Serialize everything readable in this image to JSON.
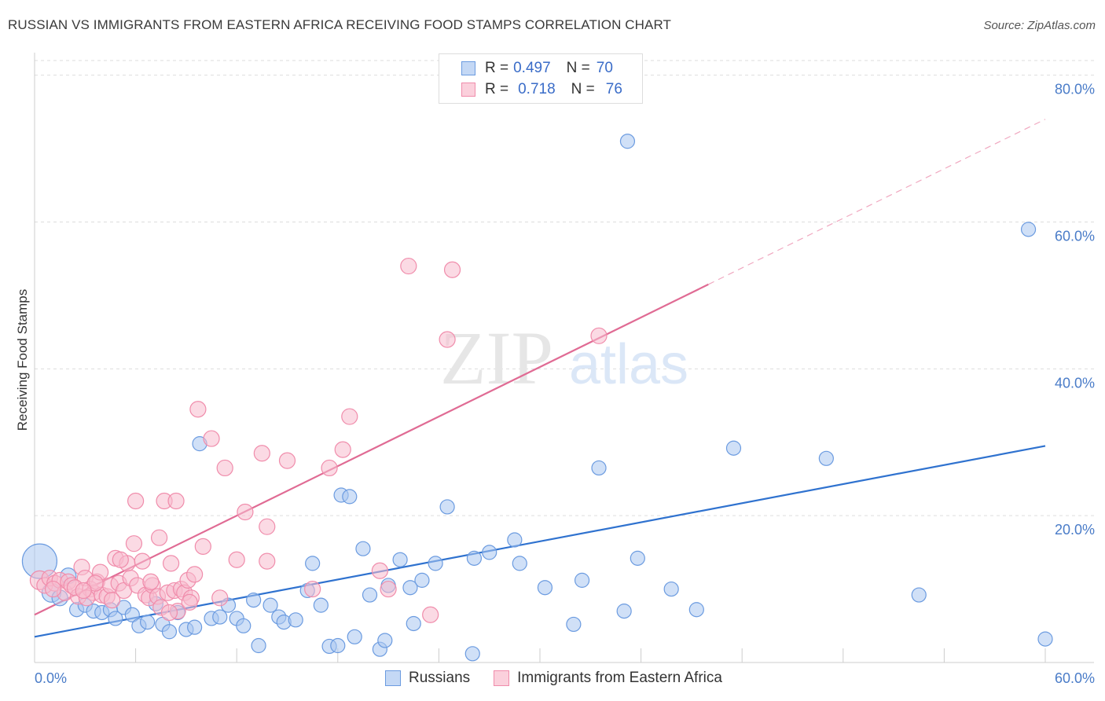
{
  "title": "RUSSIAN VS IMMIGRANTS FROM EASTERN AFRICA RECEIVING FOOD STAMPS CORRELATION CHART",
  "source": "Source: ZipAtlas.com",
  "watermark": {
    "zip": "ZIP",
    "atlas": "atlas"
  },
  "legend": {
    "r_label": "R =",
    "n_label": "N =",
    "entries": [
      {
        "r": "0.497",
        "n": "70",
        "color": "#6b9be0"
      },
      {
        "r": "0.718",
        "n": "76",
        "color": "#f08cab"
      }
    ]
  },
  "chart_data": {
    "type": "scatter",
    "ylabel": "Receiving Food Stamps",
    "xlim": [
      0,
      60
    ],
    "ylim": [
      0,
      82
    ],
    "x_ticks": [
      "0.0%",
      "60.0%"
    ],
    "y_ticks": [
      {
        "value": 20,
        "label": "20.0%"
      },
      {
        "value": 40,
        "label": "40.0%"
      },
      {
        "value": 60,
        "label": "60.0%"
      },
      {
        "value": 80,
        "label": "80.0%"
      }
    ],
    "grid": "horizontal dashed",
    "legend_position": "top-center",
    "series": [
      {
        "name": "Russians",
        "color": "#6b9be0",
        "fill": "#a9c6f0",
        "trend": {
          "x0": 0,
          "y0": 3.5,
          "x1": 60,
          "y1": 29.5
        },
        "points": [
          [
            0.3,
            13.8
          ],
          [
            1.0,
            9.5
          ],
          [
            1.5,
            8.8
          ],
          [
            2.0,
            11.8
          ],
          [
            2.5,
            7.2
          ],
          [
            3.0,
            7.8
          ],
          [
            3.5,
            7.0
          ],
          [
            4.0,
            6.8
          ],
          [
            4.5,
            7.2
          ],
          [
            4.8,
            6.0
          ],
          [
            5.3,
            7.5
          ],
          [
            5.8,
            6.5
          ],
          [
            6.2,
            5.0
          ],
          [
            6.7,
            5.5
          ],
          [
            7.2,
            8.0
          ],
          [
            7.6,
            5.2
          ],
          [
            8.0,
            4.2
          ],
          [
            8.5,
            6.8
          ],
          [
            9.0,
            4.5
          ],
          [
            9.5,
            4.8
          ],
          [
            9.8,
            29.8
          ],
          [
            10.5,
            6.0
          ],
          [
            11.0,
            6.2
          ],
          [
            11.5,
            7.8
          ],
          [
            12.0,
            6.0
          ],
          [
            12.4,
            5.0
          ],
          [
            13.0,
            8.5
          ],
          [
            13.3,
            2.3
          ],
          [
            14.0,
            7.8
          ],
          [
            14.5,
            6.2
          ],
          [
            14.8,
            5.5
          ],
          [
            15.5,
            5.8
          ],
          [
            16.2,
            9.8
          ],
          [
            16.5,
            13.5
          ],
          [
            17.0,
            7.8
          ],
          [
            17.5,
            2.2
          ],
          [
            18.0,
            2.3
          ],
          [
            18.2,
            22.8
          ],
          [
            18.7,
            22.6
          ],
          [
            19.0,
            3.5
          ],
          [
            19.5,
            15.5
          ],
          [
            19.9,
            9.2
          ],
          [
            20.5,
            1.8
          ],
          [
            20.8,
            3.0
          ],
          [
            21.0,
            10.5
          ],
          [
            21.7,
            14.0
          ],
          [
            22.3,
            10.2
          ],
          [
            22.5,
            5.3
          ],
          [
            23.0,
            11.2
          ],
          [
            23.8,
            13.5
          ],
          [
            24.5,
            21.2
          ],
          [
            26.0,
            1.2
          ],
          [
            26.1,
            14.2
          ],
          [
            27.0,
            15.0
          ],
          [
            28.5,
            16.7
          ],
          [
            28.8,
            13.5
          ],
          [
            30.3,
            10.2
          ],
          [
            32.0,
            5.2
          ],
          [
            32.5,
            11.2
          ],
          [
            33.5,
            26.5
          ],
          [
            35.0,
            7.0
          ],
          [
            35.2,
            71.0
          ],
          [
            35.8,
            14.2
          ],
          [
            37.8,
            10.0
          ],
          [
            39.3,
            7.2
          ],
          [
            41.5,
            29.2
          ],
          [
            47.0,
            27.8
          ],
          [
            52.5,
            9.2
          ],
          [
            59.0,
            59.0
          ],
          [
            60.0,
            3.2
          ]
        ],
        "sizes": [
          22,
          12,
          10,
          10,
          9,
          9,
          9,
          9,
          9,
          9,
          9,
          9,
          9,
          9,
          9,
          9,
          9,
          9,
          9,
          9,
          9,
          9,
          9,
          9,
          9,
          9,
          9,
          9,
          9,
          9,
          9,
          9,
          9,
          9,
          9,
          9,
          9,
          9,
          9,
          9,
          9,
          9,
          9,
          9,
          9,
          9,
          9,
          9,
          9,
          9,
          9,
          9,
          9,
          9,
          9,
          9,
          9,
          9,
          9,
          9,
          9,
          9,
          9,
          9,
          9,
          9,
          9,
          9,
          9,
          9
        ]
      },
      {
        "name": "Immigrants from Eastern Africa",
        "color": "#f08cab",
        "fill": "#f8bccd",
        "trend": {
          "x0": 0,
          "y0": 6.5,
          "x1": 40,
          "y1": 51.5,
          "dash_to_x": 60,
          "dash_to_y": 74
        },
        "points": [
          [
            0.3,
            11.2
          ],
          [
            0.6,
            10.5
          ],
          [
            0.9,
            11.5
          ],
          [
            1.2,
            10.8
          ],
          [
            1.5,
            11.2
          ],
          [
            1.8,
            9.5
          ],
          [
            2.0,
            11.0
          ],
          [
            2.2,
            10.5
          ],
          [
            2.6,
            9.0
          ],
          [
            2.8,
            13.0
          ],
          [
            3.0,
            11.5
          ],
          [
            3.3,
            10.0
          ],
          [
            3.5,
            9.5
          ],
          [
            3.7,
            11.0
          ],
          [
            3.9,
            12.3
          ],
          [
            4.0,
            9.2
          ],
          [
            4.3,
            9.0
          ],
          [
            4.5,
            10.5
          ],
          [
            4.8,
            14.2
          ],
          [
            5.0,
            10.8
          ],
          [
            5.3,
            9.8
          ],
          [
            5.5,
            13.5
          ],
          [
            5.7,
            11.5
          ],
          [
            5.9,
            16.2
          ],
          [
            6.1,
            10.5
          ],
          [
            6.4,
            13.8
          ],
          [
            6.6,
            9.2
          ],
          [
            6.8,
            8.8
          ],
          [
            7.0,
            10.5
          ],
          [
            7.3,
            9.0
          ],
          [
            7.5,
            7.5
          ],
          [
            7.7,
            22.0
          ],
          [
            7.9,
            9.5
          ],
          [
            8.1,
            13.5
          ],
          [
            8.3,
            9.8
          ],
          [
            8.5,
            7.0
          ],
          [
            8.7,
            10.0
          ],
          [
            8.9,
            9.5
          ],
          [
            9.1,
            11.2
          ],
          [
            9.3,
            8.8
          ],
          [
            9.5,
            12.0
          ],
          [
            9.7,
            34.5
          ],
          [
            10.0,
            15.8
          ],
          [
            10.5,
            30.5
          ],
          [
            11.0,
            8.8
          ],
          [
            11.3,
            26.5
          ],
          [
            12.0,
            14.0
          ],
          [
            12.5,
            20.5
          ],
          [
            13.5,
            28.5
          ],
          [
            13.8,
            18.5
          ],
          [
            13.8,
            13.8
          ],
          [
            15.0,
            27.5
          ],
          [
            16.5,
            10.0
          ],
          [
            17.5,
            26.5
          ],
          [
            18.3,
            29.0
          ],
          [
            18.7,
            33.5
          ],
          [
            20.5,
            12.5
          ],
          [
            21.0,
            10.0
          ],
          [
            22.2,
            54.0
          ],
          [
            23.5,
            6.5
          ],
          [
            24.8,
            53.5
          ],
          [
            24.5,
            44.0
          ],
          [
            33.5,
            44.5
          ],
          [
            7.4,
            17.0
          ],
          [
            6.0,
            22.0
          ],
          [
            8.4,
            22.0
          ],
          [
            4.6,
            8.5
          ],
          [
            3.1,
            8.8
          ],
          [
            2.4,
            10.2
          ],
          [
            1.1,
            10.0
          ],
          [
            5.1,
            14.0
          ],
          [
            6.9,
            11.0
          ],
          [
            8.0,
            6.8
          ],
          [
            9.2,
            8.2
          ],
          [
            3.6,
            10.8
          ],
          [
            2.9,
            9.8
          ]
        ],
        "sizes": [
          12,
          10,
          10,
          10,
          10,
          10,
          10,
          10,
          10,
          10,
          10,
          10,
          10,
          10,
          10,
          10,
          10,
          10,
          10,
          10,
          10,
          10,
          10,
          10,
          10,
          10,
          10,
          10,
          10,
          10,
          10,
          10,
          10,
          10,
          10,
          10,
          10,
          10,
          10,
          10,
          10,
          10,
          10,
          10,
          10,
          10,
          10,
          10,
          10,
          10,
          10,
          10,
          10,
          10,
          10,
          10,
          10,
          10,
          10,
          10,
          10,
          10,
          10,
          10,
          10,
          10,
          10,
          10,
          10,
          10,
          10,
          10,
          10,
          10,
          10,
          10
        ]
      }
    ]
  }
}
